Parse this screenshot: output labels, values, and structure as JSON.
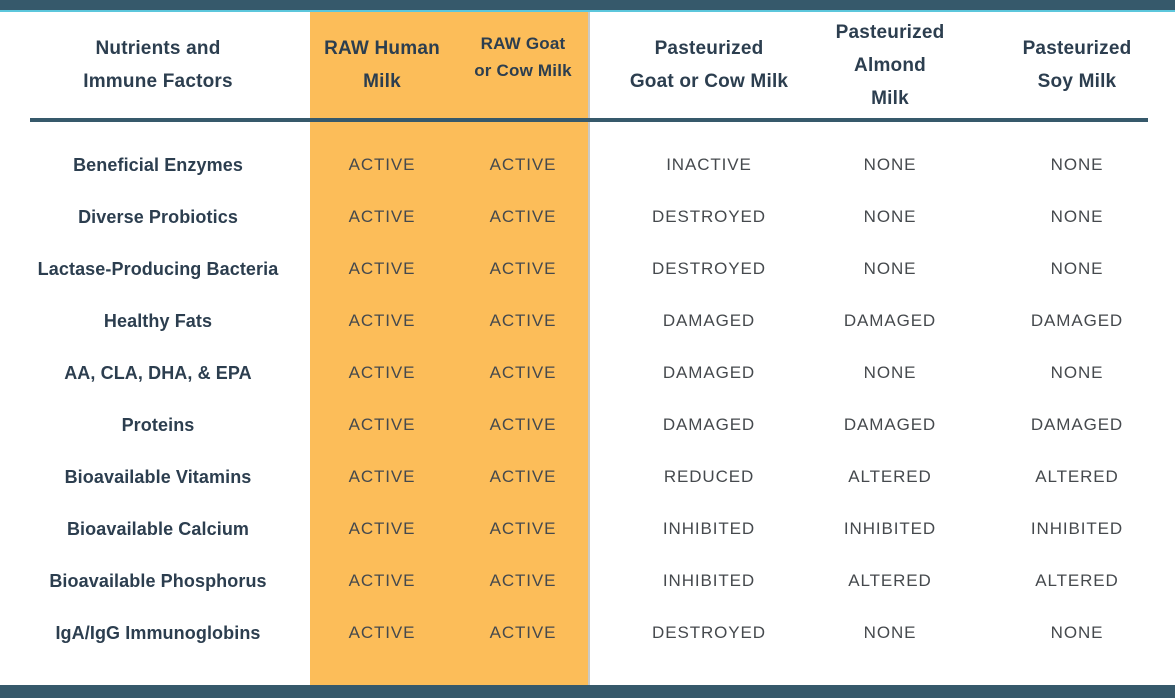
{
  "colors": {
    "teal_band": "#36596B",
    "cyan_accent": "#5CC7DC",
    "orange_highlight": "#FCBD59",
    "header_text": "#2C3E4F",
    "label_text": "#2C3E4F",
    "value_text": "#45494D",
    "divider_gray": "#C9C9C7"
  },
  "table": {
    "columns": [
      {
        "id": "factors",
        "label": "Nutrients and\nImmune Factors"
      },
      {
        "id": "raw-human-milk",
        "label": "RAW Human\nMilk"
      },
      {
        "id": "raw-goat-cow-milk",
        "label": "RAW Goat\nor Cow Milk"
      },
      {
        "id": "pasteurized-goat-cow-milk",
        "label": "Pasteurized\nGoat or Cow Milk"
      },
      {
        "id": "pasteurized-almond-milk",
        "label": "Pasteurized\nAlmond Milk"
      },
      {
        "id": "pasteurized-soy-milk",
        "label": "Pasteurized\nSoy Milk"
      }
    ],
    "rows": [
      {
        "factor": "Beneficial Enzymes",
        "values": [
          "ACTIVE",
          "ACTIVE",
          "INACTIVE",
          "NONE",
          "NONE"
        ]
      },
      {
        "factor": "Diverse Probiotics",
        "values": [
          "ACTIVE",
          "ACTIVE",
          "DESTROYED",
          "NONE",
          "NONE"
        ]
      },
      {
        "factor": "Lactase-Producing Bacteria",
        "values": [
          "ACTIVE",
          "ACTIVE",
          "DESTROYED",
          "NONE",
          "NONE"
        ]
      },
      {
        "factor": "Healthy Fats",
        "values": [
          "ACTIVE",
          "ACTIVE",
          "DAMAGED",
          "DAMAGED",
          "DAMAGED"
        ]
      },
      {
        "factor": "AA, CLA, DHA, & EPA",
        "values": [
          "ACTIVE",
          "ACTIVE",
          "DAMAGED",
          "NONE",
          "NONE"
        ]
      },
      {
        "factor": "Proteins",
        "values": [
          "ACTIVE",
          "ACTIVE",
          "DAMAGED",
          "DAMAGED",
          "DAMAGED"
        ]
      },
      {
        "factor": "Bioavailable Vitamins",
        "values": [
          "ACTIVE",
          "ACTIVE",
          "REDUCED",
          "ALTERED",
          "ALTERED"
        ]
      },
      {
        "factor": "Bioavailable Calcium",
        "values": [
          "ACTIVE",
          "ACTIVE",
          "INHIBITED",
          "INHIBITED",
          "INHIBITED"
        ]
      },
      {
        "factor": "Bioavailable Phosphorus",
        "values": [
          "ACTIVE",
          "ACTIVE",
          "INHIBITED",
          "ALTERED",
          "ALTERED"
        ]
      },
      {
        "factor": "IgA/IgG Immunoglobins",
        "values": [
          "ACTIVE",
          "ACTIVE",
          "DESTROYED",
          "NONE",
          "NONE"
        ]
      }
    ]
  },
  "chart_data": {
    "type": "table",
    "title": "",
    "columns": [
      "Nutrients and Immune Factors",
      "RAW Human Milk",
      "RAW Goat or Cow Milk",
      "Pasteurized Goat or Cow Milk",
      "Pasteurized Almond Milk",
      "Pasteurized Soy Milk"
    ],
    "rows": [
      [
        "Beneficial Enzymes",
        "ACTIVE",
        "ACTIVE",
        "INACTIVE",
        "NONE",
        "NONE"
      ],
      [
        "Diverse Probiotics",
        "ACTIVE",
        "ACTIVE",
        "DESTROYED",
        "NONE",
        "NONE"
      ],
      [
        "Lactase-Producing Bacteria",
        "ACTIVE",
        "ACTIVE",
        "DESTROYED",
        "NONE",
        "NONE"
      ],
      [
        "Healthy Fats",
        "ACTIVE",
        "ACTIVE",
        "DAMAGED",
        "DAMAGED",
        "DAMAGED"
      ],
      [
        "AA, CLA, DHA, & EPA",
        "ACTIVE",
        "ACTIVE",
        "DAMAGED",
        "NONE",
        "NONE"
      ],
      [
        "Proteins",
        "ACTIVE",
        "ACTIVE",
        "DAMAGED",
        "DAMAGED",
        "DAMAGED"
      ],
      [
        "Bioavailable Vitamins",
        "ACTIVE",
        "ACTIVE",
        "REDUCED",
        "ALTERED",
        "ALTERED"
      ],
      [
        "Bioavailable Calcium",
        "ACTIVE",
        "ACTIVE",
        "INHIBITED",
        "INHIBITED",
        "INHIBITED"
      ],
      [
        "Bioavailable Phosphorus",
        "ACTIVE",
        "ACTIVE",
        "INHIBITED",
        "ALTERED",
        "ALTERED"
      ],
      [
        "IgA/IgG Immunoglobins",
        "ACTIVE",
        "ACTIVE",
        "DESTROYED",
        "NONE",
        "NONE"
      ]
    ],
    "highlighted_columns": [
      "RAW Human Milk",
      "RAW Goat or Cow Milk"
    ],
    "highlight_color": "#FCBD59",
    "layout_hints": {
      "grid": false,
      "header_underline": true,
      "top_bottom_bands": "#36596B"
    }
  }
}
